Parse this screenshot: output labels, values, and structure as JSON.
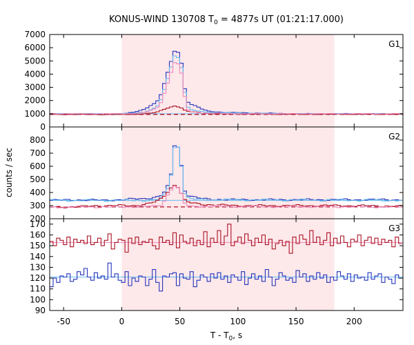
{
  "chart_data": {
    "type": "line",
    "title": {
      "prefix": "KONUS-WIND 130708 T",
      "sub": "0",
      "suffix": " = 4877s UT (01:21:17.000)"
    },
    "xlabel": {
      "prefix": "T - T",
      "sub": "0",
      "suffix": ", s"
    },
    "ylabel": "counts / sec",
    "xlim": [
      -62,
      242
    ],
    "x_ticks": [
      -50,
      0,
      50,
      100,
      150,
      200
    ],
    "highlight_interval": [
      0,
      183
    ],
    "colors": {
      "highlight": "#fde8ea",
      "blue": "#2233bb",
      "red": "#aa1122",
      "light_blue": "#66bbee",
      "pink": "#ee88bb"
    },
    "panels": [
      {
        "name": "G1",
        "ylim": [
          0,
          7000
        ],
        "y_ticks": [
          0,
          1000,
          2000,
          3000,
          4000,
          5000,
          6000,
          7000
        ],
        "background_levels": {
          "dashed_red": 950,
          "solid_cyan": 1000
        },
        "series": [
          {
            "color": "blue",
            "step": 2.944,
            "points": [
              [
                -62,
                1000
              ],
              [
                -30,
                980
              ],
              [
                0,
                1000
              ],
              [
                10,
                1100
              ],
              [
                20,
                1350
              ],
              [
                25,
                1650
              ],
              [
                30,
                1850
              ],
              [
                34,
                2500
              ],
              [
                38,
                3700
              ],
              [
                41,
                4500
              ],
              [
                43,
                5100
              ],
              [
                45,
                5750
              ],
              [
                48,
                5700
              ],
              [
                50,
                5500
              ],
              [
                53,
                4000
              ],
              [
                55,
                2300
              ],
              [
                57,
                1900
              ],
              [
                60,
                1700
              ],
              [
                65,
                1550
              ],
              [
                70,
                1300
              ],
              [
                75,
                1200
              ],
              [
                80,
                1150
              ],
              [
                90,
                1100
              ],
              [
                100,
                1080
              ],
              [
                150,
                1000
              ],
              [
                200,
                1000
              ],
              [
                242,
                990
              ]
            ]
          },
          {
            "color": "light_blue",
            "step": 2.944,
            "points": [
              [
                -62,
                1000
              ],
              [
                0,
                1000
              ],
              [
                10,
                1050
              ],
              [
                20,
                1150
              ],
              [
                25,
                1300
              ],
              [
                30,
                1500
              ],
              [
                34,
                2100
              ],
              [
                38,
                3200
              ],
              [
                41,
                4100
              ],
              [
                43,
                4700
              ],
              [
                45,
                5400
              ],
              [
                48,
                5300
              ],
              [
                50,
                5100
              ],
              [
                53,
                3800
              ],
              [
                55,
                2000
              ],
              [
                57,
                1500
              ],
              [
                60,
                1300
              ],
              [
                65,
                1200
              ],
              [
                70,
                1150
              ],
              [
                80,
                1100
              ],
              [
                100,
                1050
              ],
              [
                150,
                1000
              ],
              [
                242,
                990
              ]
            ]
          },
          {
            "color": "red",
            "step": 2.944,
            "points": [
              [
                -62,
                950
              ],
              [
                -30,
                940
              ],
              [
                0,
                940
              ],
              [
                10,
                960
              ],
              [
                20,
                1000
              ],
              [
                25,
                1050
              ],
              [
                30,
                1100
              ],
              [
                34,
                1250
              ],
              [
                38,
                1400
              ],
              [
                42,
                1500
              ],
              [
                45,
                1600
              ],
              [
                48,
                1550
              ],
              [
                50,
                1500
              ],
              [
                53,
                1350
              ],
              [
                55,
                1200
              ],
              [
                60,
                1150
              ],
              [
                65,
                1100
              ],
              [
                70,
                1050
              ],
              [
                80,
                1000
              ],
              [
                100,
                980
              ],
              [
                150,
                960
              ],
              [
                242,
                960
              ]
            ]
          },
          {
            "color": "pink",
            "step": 2.944,
            "points": [
              [
                -62,
                1000
              ],
              [
                0,
                1000
              ],
              [
                10,
                1020
              ],
              [
                20,
                1100
              ],
              [
                25,
                1250
              ],
              [
                30,
                1400
              ],
              [
                34,
                1900
              ],
              [
                38,
                2900
              ],
              [
                41,
                3700
              ],
              [
                43,
                4300
              ],
              [
                45,
                4900
              ],
              [
                48,
                4800
              ],
              [
                50,
                4600
              ],
              [
                53,
                3400
              ],
              [
                55,
                1700
              ],
              [
                57,
                1300
              ],
              [
                60,
                1150
              ],
              [
                65,
                1100
              ],
              [
                70,
                1050
              ],
              [
                100,
                1000
              ],
              [
                242,
                1000
              ]
            ]
          }
        ]
      },
      {
        "name": "G2",
        "ylim": [
          200,
          900
        ],
        "y_ticks": [
          200,
          300,
          400,
          500,
          600,
          700,
          800
        ],
        "background_levels": {
          "dashed_red": 290,
          "solid_cyan": 340
        },
        "series": [
          {
            "color": "blue",
            "step": 2.944,
            "points": [
              [
                -62,
                340
              ],
              [
                -40,
                345
              ],
              [
                -20,
                340
              ],
              [
                0,
                345
              ],
              [
                20,
                355
              ],
              [
                30,
                365
              ],
              [
                35,
                380
              ],
              [
                38,
                420
              ],
              [
                41,
                470
              ],
              [
                43,
                560
              ],
              [
                45,
                760
              ],
              [
                48,
                760
              ],
              [
                50,
                700
              ],
              [
                52,
                560
              ],
              [
                54,
                420
              ],
              [
                57,
                380
              ],
              [
                60,
                370
              ],
              [
                65,
                360
              ],
              [
                70,
                350
              ],
              [
                100,
                345
              ],
              [
                150,
                345
              ],
              [
                200,
                345
              ],
              [
                242,
                345
              ]
            ]
          },
          {
            "color": "light_blue",
            "step": 2.944,
            "points": [
              [
                -62,
                340
              ],
              [
                0,
                340
              ],
              [
                20,
                340
              ],
              [
                30,
                345
              ],
              [
                35,
                360
              ],
              [
                38,
                400
              ],
              [
                41,
                460
              ],
              [
                43,
                560
              ],
              [
                45,
                740
              ],
              [
                48,
                760
              ],
              [
                50,
                700
              ],
              [
                52,
                560
              ],
              [
                54,
                400
              ],
              [
                57,
                360
              ],
              [
                60,
                350
              ],
              [
                70,
                345
              ],
              [
                242,
                340
              ]
            ]
          },
          {
            "color": "red",
            "step": 2.944,
            "points": [
              [
                -62,
                290
              ],
              [
                -40,
                290
              ],
              [
                -20,
                300
              ],
              [
                0,
                300
              ],
              [
                10,
                300
              ],
              [
                20,
                310
              ],
              [
                30,
                330
              ],
              [
                35,
                360
              ],
              [
                38,
                390
              ],
              [
                41,
                420
              ],
              [
                43,
                440
              ],
              [
                45,
                460
              ],
              [
                48,
                450
              ],
              [
                50,
                420
              ],
              [
                53,
                360
              ],
              [
                55,
                330
              ],
              [
                60,
                320
              ],
              [
                70,
                310
              ],
              [
                80,
                305
              ],
              [
                100,
                300
              ],
              [
                150,
                300
              ],
              [
                200,
                300
              ],
              [
                242,
                295
              ]
            ]
          },
          {
            "color": "pink",
            "step": 2.944,
            "points": [
              [
                -62,
                290
              ],
              [
                0,
                290
              ],
              [
                30,
                295
              ],
              [
                35,
                310
              ],
              [
                38,
                360
              ],
              [
                41,
                400
              ],
              [
                43,
                430
              ],
              [
                45,
                450
              ],
              [
                48,
                440
              ],
              [
                50,
                420
              ],
              [
                53,
                350
              ],
              [
                55,
                300
              ],
              [
                60,
                295
              ],
              [
                242,
                290
              ]
            ]
          }
        ]
      },
      {
        "name": "G3",
        "ylim": [
          90,
          175
        ],
        "y_ticks": [
          90,
          100,
          110,
          120,
          130,
          140,
          150,
          160,
          170
        ],
        "background_levels": {
          "pink": 153,
          "light_blue": 121
        },
        "series": [
          {
            "color": "red",
            "step": 2.944,
            "values": [
              154,
              150,
              157,
              155,
              151,
              158,
              149,
              156,
              153,
              155,
              152,
              159,
              151,
              153,
              157,
              150,
              155,
              161,
              147,
              153,
              156,
              155,
              144,
              157,
              152,
              158,
              151,
              154,
              153,
              156,
              150,
              147,
              158,
              153,
              155,
              151,
              162,
              148,
              160,
              154,
              152,
              157,
              150,
              155,
              151,
              163,
              149,
              157,
              153,
              164,
              151,
              159,
              170,
              150,
              154,
              158,
              152,
              161,
              155,
              150,
              157,
              153,
              160,
              151,
              156,
              147,
              152,
              155,
              150,
              154,
              143,
              158,
              152,
              160,
              156,
              151,
              164,
              153,
              158,
              151,
              155,
              162,
              150,
              157,
              152,
              159,
              153,
              149,
              156,
              154,
              160,
              150,
              155,
              158,
              152,
              157,
              151,
              156,
              153,
              155,
              149,
              158,
              152,
              166,
              160,
              148,
              157,
              154,
              150,
              156,
              162,
              152,
              158,
              151,
              155,
              149
            ]
          },
          {
            "color": "blue",
            "step": 2.944,
            "values": [
              112,
              120,
              116,
              122,
              121,
              124,
              117,
              119,
              126,
              123,
              129,
              121,
              118,
              125,
              120,
              122,
              119,
              134,
              121,
              124,
              118,
              116,
              126,
              113,
              120,
              117,
              122,
              121,
              113,
              119,
              128,
              116,
              108,
              122,
              121,
              124,
              125,
              113,
              124,
              120,
              119,
              126,
              112,
              118,
              123,
              121,
              117,
              124,
              120,
              125,
              119,
              122,
              116,
              123,
              121,
              118,
              126,
              114,
              120,
              124,
              119,
              122,
              117,
              128,
              121,
              113,
              119,
              125,
              122,
              118,
              120,
              116,
              127,
              121,
              124,
              117,
              122,
              119,
              125,
              120,
              123,
              116,
              121,
              118,
              126,
              122,
              119,
              124,
              117,
              123,
              120,
              121,
              118,
              125,
              119,
              122,
              124,
              116,
              121,
              119,
              115,
              123,
              120,
              126,
              118,
              122,
              121,
              117,
              124,
              119,
              120,
              123,
              116,
              122,
              118,
              121
            ]
          }
        ]
      }
    ]
  }
}
